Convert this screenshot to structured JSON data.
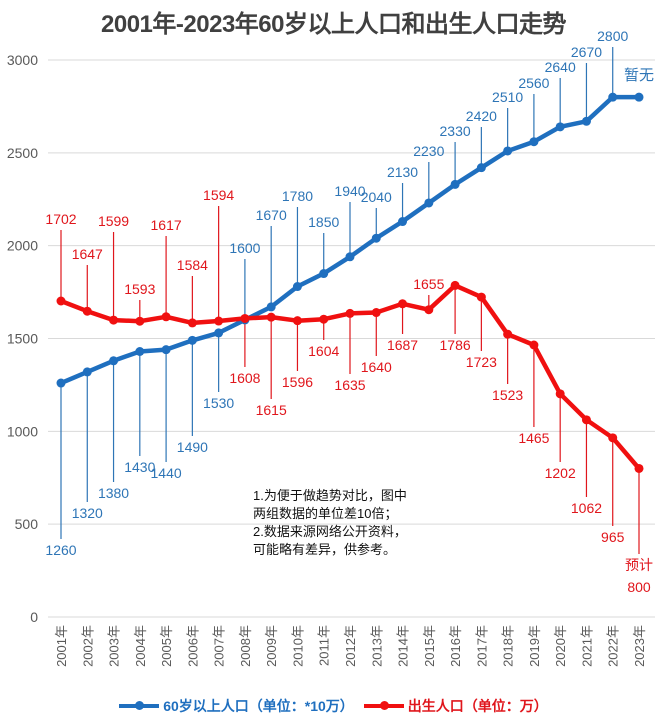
{
  "chart_data": {
    "type": "line",
    "title": "2001年-2023年60岁以上人口和出生人口走势",
    "xlabel": "",
    "ylabel": "",
    "ylim": [
      0,
      3000
    ],
    "yticks": [
      0,
      500,
      1000,
      1500,
      2000,
      2500,
      3000
    ],
    "grid": true,
    "legend_position": "bottom",
    "categories": [
      "2001年",
      "2002年",
      "2003年",
      "2004年",
      "2005年",
      "2006年",
      "2007年",
      "2008年",
      "2009年",
      "2010年",
      "2011年",
      "2012年",
      "2013年",
      "2014年",
      "2015年",
      "2016年",
      "2017年",
      "2018年",
      "2019年",
      "2020年",
      "2021年",
      "2022年",
      "2023年"
    ],
    "series": [
      {
        "name": "60岁以上人口（单位：*10万）",
        "color": "#1F6FBF",
        "label_color": "#2E75B6",
        "values": [
          1260,
          1320,
          1380,
          1430,
          1440,
          1490,
          1530,
          1600,
          1670,
          1780,
          1850,
          1940,
          2040,
          2130,
          2230,
          2330,
          2420,
          2510,
          2560,
          2640,
          2670,
          2800,
          2800
        ],
        "labels": [
          "1260",
          "1320",
          "1380",
          "1430",
          "1440",
          "1490",
          "1530",
          "1600",
          "1670",
          "1780",
          "1850",
          "1940",
          "2040",
          "2130",
          "2230",
          "2330",
          "2420",
          "2510",
          "2560",
          "2640",
          "2670",
          "2800",
          "暂无"
        ]
      },
      {
        "name": "出生人口（单位：万）",
        "color": "#F01010",
        "label_color": "#E0161C",
        "values": [
          1702,
          1647,
          1599,
          1593,
          1617,
          1584,
          1594,
          1608,
          1615,
          1596,
          1604,
          1635,
          1640,
          1687,
          1655,
          1786,
          1723,
          1523,
          1465,
          1202,
          1062,
          965,
          800
        ],
        "labels": [
          "1702",
          "1647",
          "1599",
          "1593",
          "1617",
          "1584",
          "1594",
          "1608",
          "1615",
          "1596",
          "1604",
          "1635",
          "1640",
          "1687",
          "1655",
          "1786",
          "1723",
          "1523",
          "1465",
          "1202",
          "1062",
          "965",
          "预计\n800"
        ]
      }
    ],
    "annotations": [
      "1.为便于做趋势对比，图中\n两组数据的单位差10倍；\n2.数据来源网络公开资料，\n可能略有差异，供参考。"
    ]
  },
  "legend": {
    "blue": "60岁以上人口（单位：*10万）",
    "red": "出生人口（单位：万）"
  }
}
